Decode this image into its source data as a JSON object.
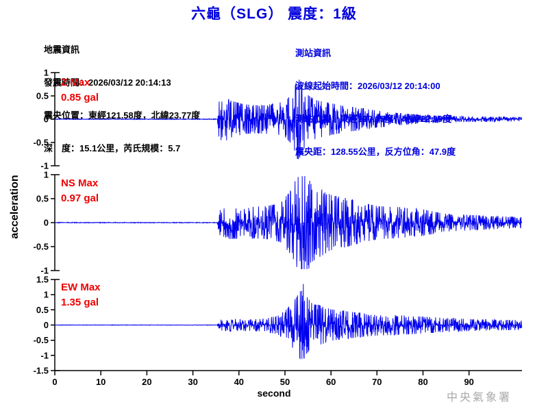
{
  "header": {
    "title": "六龜（SLG） 震度：1級"
  },
  "quake_info": {
    "heading": "地震資訊",
    "lines": [
      "發震時間：2026/03/12 20:14:13",
      "震央位置：東經121.58度，北緯23.77度",
      "深　度：15.1公里，芮氏規模：5.7"
    ]
  },
  "station_info": {
    "heading": "測站資訊",
    "lines": [
      "波線起始時間：2026/03/12 20:14:00",
      "測站位置：東經120.65度，北緯22.99度",
      "震央距：128.55公里，反方位角：47.9度"
    ]
  },
  "footer": {
    "agency": "中央氣象署"
  },
  "colors": {
    "title_blue": "#0000dd",
    "trace_blue": "#0000ee",
    "label_red": "#ee0000",
    "axis_black": "#000000",
    "agency_gray": "#a9a9a9"
  },
  "chart_data": {
    "type": "line",
    "title": "六龜（SLG） 震度：1級",
    "ylabel": "acceleration",
    "xlabel": "second",
    "x_ticks": [
      0,
      10,
      20,
      30,
      40,
      50,
      60,
      70,
      80,
      90
    ],
    "x_range": [
      0,
      101.5
    ],
    "event_onset_time": 35.7,
    "trace_color": "#0000ee",
    "grid": false,
    "subplots": [
      {
        "channel": "Z",
        "label": "Z Max",
        "max_label": "0.85 gal",
        "max_gal": 0.85,
        "peak_time": 53.1,
        "ylim": [
          -1,
          1
        ],
        "y_ticks": [
          1,
          0.5,
          0,
          -0.5,
          -1
        ],
        "seed": 101,
        "envelope": [
          [
            0,
            0.006
          ],
          [
            35.3,
            0.006
          ],
          [
            35.7,
            0.38
          ],
          [
            36.5,
            0.45
          ],
          [
            38,
            0.35
          ],
          [
            41,
            0.28
          ],
          [
            44,
            0.26
          ],
          [
            47,
            0.28
          ],
          [
            50,
            0.33
          ],
          [
            51.8,
            0.5
          ],
          [
            52.8,
            0.8
          ],
          [
            53.8,
            0.6
          ],
          [
            55,
            0.45
          ],
          [
            57,
            0.35
          ],
          [
            60,
            0.3
          ],
          [
            63,
            0.24
          ],
          [
            67,
            0.2
          ],
          [
            70,
            0.16
          ],
          [
            75,
            0.11
          ],
          [
            80,
            0.08
          ],
          [
            85,
            0.06
          ],
          [
            92,
            0.05
          ],
          [
            101.5,
            0.04
          ]
        ]
      },
      {
        "channel": "NS",
        "label": "NS Max",
        "max_label": "0.97 gal",
        "max_gal": 0.97,
        "peak_time": 54.3,
        "ylim": [
          -1,
          1
        ],
        "y_ticks": [
          1,
          0.5,
          0,
          -0.5,
          -1
        ],
        "seed": 202,
        "envelope": [
          [
            0,
            0.006
          ],
          [
            35.3,
            0.006
          ],
          [
            35.7,
            0.22
          ],
          [
            38,
            0.3
          ],
          [
            42,
            0.28
          ],
          [
            46,
            0.3
          ],
          [
            49,
            0.35
          ],
          [
            51,
            0.55
          ],
          [
            52.5,
            0.8
          ],
          [
            54.5,
            0.95
          ],
          [
            56,
            0.7
          ],
          [
            58,
            0.6
          ],
          [
            60,
            0.5
          ],
          [
            63,
            0.45
          ],
          [
            66,
            0.38
          ],
          [
            70,
            0.3
          ],
          [
            75,
            0.28
          ],
          [
            80,
            0.24
          ],
          [
            85,
            0.16
          ],
          [
            95,
            0.12
          ],
          [
            101.5,
            0.1
          ]
        ]
      },
      {
        "channel": "EW",
        "label": "EW Max",
        "max_label": "1.35 gal",
        "max_gal": 1.35,
        "peak_time": 54.0,
        "ylim": [
          -1.5,
          1.5
        ],
        "y_ticks": [
          1.5,
          1,
          0.5,
          0,
          -0.5,
          -1,
          -1.5
        ],
        "seed": 303,
        "envelope": [
          [
            0,
            0.006
          ],
          [
            35.3,
            0.006
          ],
          [
            35.7,
            0.15
          ],
          [
            38,
            0.18
          ],
          [
            42,
            0.16
          ],
          [
            45,
            0.18
          ],
          [
            48,
            0.25
          ],
          [
            50,
            0.4
          ],
          [
            52,
            0.7
          ],
          [
            53.5,
            1.0
          ],
          [
            54.5,
            0.85
          ],
          [
            56,
            0.6
          ],
          [
            58,
            0.55
          ],
          [
            60,
            0.45
          ],
          [
            63,
            0.4
          ],
          [
            66,
            0.35
          ],
          [
            70,
            0.3
          ],
          [
            75,
            0.28
          ],
          [
            80,
            0.24
          ],
          [
            85,
            0.2
          ],
          [
            92,
            0.16
          ],
          [
            101.5,
            0.14
          ]
        ]
      }
    ]
  }
}
